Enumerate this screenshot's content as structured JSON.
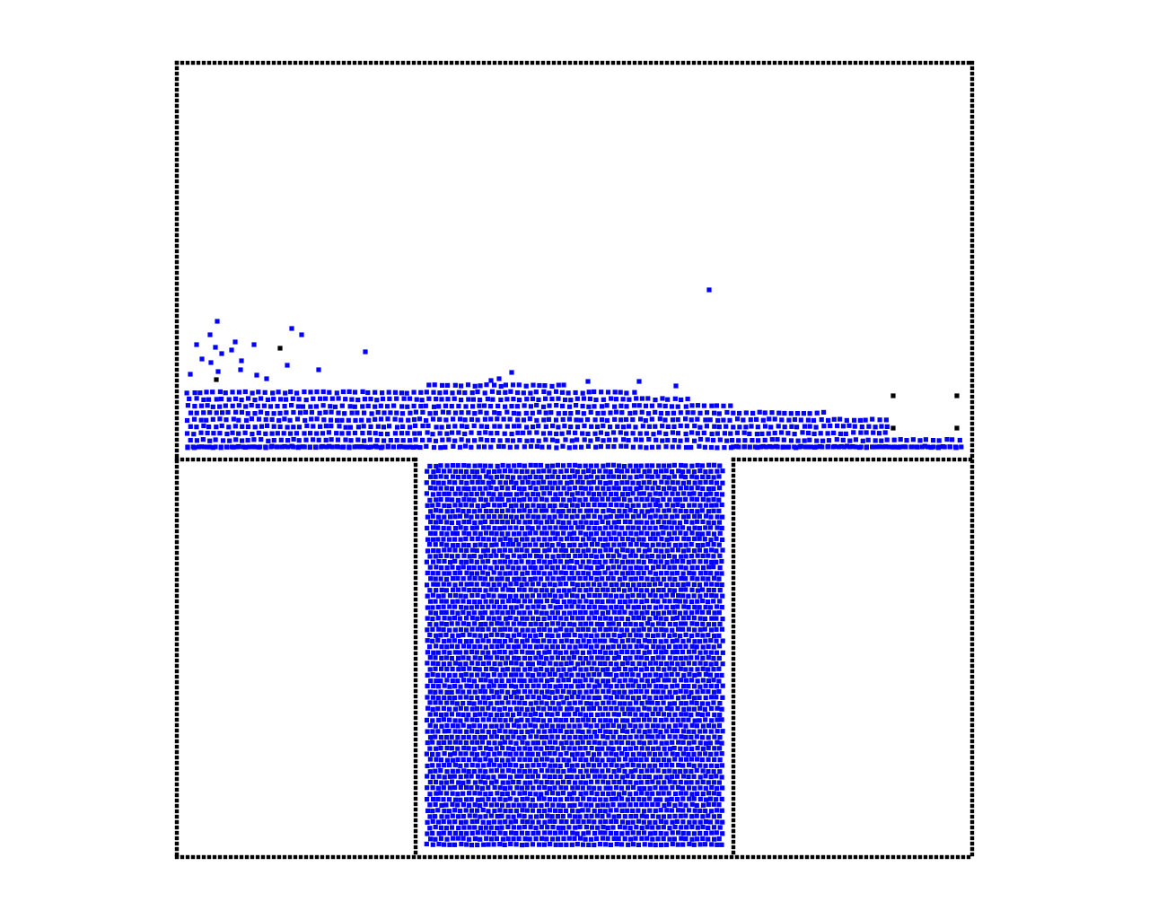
{
  "simulation": {
    "colors": {
      "background": "#ffffff",
      "boundary": "#000000",
      "fluid": "#0000ff"
    },
    "icons": {
      "boundary_particle": "black-square",
      "fluid_particle": "blue-square"
    }
  }
}
